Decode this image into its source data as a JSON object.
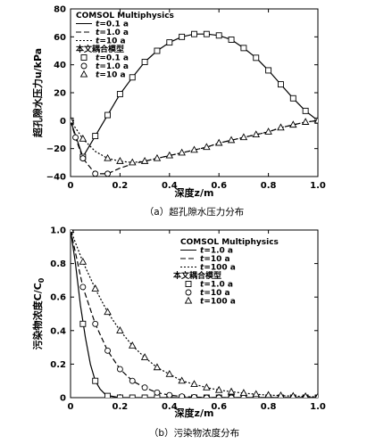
{
  "chart_data": [
    {
      "type": "line",
      "caption": "（a）超孔隙水压力分布",
      "xlabel": "深度z/m",
      "ylabel": "超孔隙水压力u/kPa",
      "xlim": [
        0,
        1
      ],
      "ylim": [
        -40,
        80
      ],
      "xticks": [
        "0",
        "0.2",
        "0.4",
        "0.6",
        "0.8",
        "1.0"
      ],
      "yticks": [
        "−40",
        "−20",
        "0",
        "20",
        "40",
        "60",
        "80"
      ],
      "legend_placement": "top-left",
      "legend_group1_title": "COMSOL Multiphysics",
      "legend_group2_title": "本文耦合模型",
      "series": [
        {
          "name": "t=0.1 a",
          "source": "COMSOL Multiphysics",
          "style": "solid",
          "x": [
            0,
            0.05,
            0.1,
            0.15,
            0.2,
            0.25,
            0.3,
            0.35,
            0.4,
            0.45,
            0.5,
            0.55,
            0.6,
            0.65,
            0.7,
            0.75,
            0.8,
            0.85,
            0.9,
            0.95,
            1.0
          ],
          "y": [
            0,
            -26,
            -11,
            4,
            19,
            31,
            42,
            50,
            56,
            60,
            62,
            62,
            61,
            58,
            52,
            45,
            36,
            26,
            16,
            7,
            0
          ]
        },
        {
          "name": "t=1.0 a",
          "source": "COMSOL Multiphysics",
          "style": "dashed",
          "x": [
            0,
            0.02,
            0.05,
            0.1,
            0.15,
            0.2,
            0.25,
            0.3,
            0.35,
            0.4,
            0.45,
            0.5,
            0.55,
            0.6,
            0.65,
            0.7,
            0.75,
            0.8,
            0.85,
            0.9,
            0.95,
            1.0
          ],
          "y": [
            0,
            -12,
            -27,
            -38,
            -38,
            -34,
            -31,
            -29,
            -27,
            -25,
            -23,
            -21,
            -19,
            -16,
            -14,
            -12,
            -10,
            -8,
            -5,
            -3,
            -1,
            0
          ]
        },
        {
          "name": "t=10 a",
          "source": "COMSOL Multiphysics",
          "style": "dotted",
          "x": [
            0,
            0.05,
            0.1,
            0.15,
            0.2,
            0.25,
            0.3,
            0.35,
            0.4,
            0.45,
            0.5,
            0.55,
            0.6,
            0.65,
            0.7,
            0.75,
            0.8,
            0.85,
            0.9,
            0.95,
            1.0
          ],
          "y": [
            0,
            -13,
            -22,
            -27,
            -29,
            -30,
            -29,
            -27,
            -25,
            -23,
            -21,
            -19,
            -16,
            -14,
            -12,
            -10,
            -8,
            -5,
            -3,
            -1,
            0
          ]
        },
        {
          "name": "t=0.1 a",
          "source": "本文耦合模型",
          "marker": "square",
          "x": [
            0,
            0.05,
            0.1,
            0.15,
            0.2,
            0.25,
            0.3,
            0.35,
            0.4,
            0.45,
            0.5,
            0.55,
            0.6,
            0.65,
            0.7,
            0.75,
            0.8,
            0.85,
            0.9,
            0.95,
            1.0
          ],
          "y": [
            0,
            -26,
            -11,
            4,
            19,
            31,
            42,
            50,
            56,
            60,
            62,
            62,
            61,
            58,
            52,
            45,
            36,
            26,
            16,
            7,
            0
          ]
        },
        {
          "name": "t=1.0 a",
          "source": "本文耦合模型",
          "marker": "circle",
          "x": [
            0.02,
            0.05,
            0.1,
            0.15
          ],
          "y": [
            -12,
            -27,
            -38,
            -38
          ]
        },
        {
          "name": "t=10 a",
          "source": "本文耦合模型",
          "marker": "triangle",
          "x": [
            0,
            0.05,
            0.15,
            0.2,
            0.25,
            0.3,
            0.35,
            0.4,
            0.45,
            0.5,
            0.55,
            0.6,
            0.65,
            0.7,
            0.75,
            0.8,
            0.85,
            0.9,
            0.95,
            1.0
          ],
          "y": [
            0,
            -13,
            -27,
            -29,
            -30,
            -29,
            -27,
            -25,
            -23,
            -21,
            -19,
            -16,
            -14,
            -12,
            -10,
            -8,
            -5,
            -3,
            -1,
            0
          ]
        }
      ]
    },
    {
      "type": "line",
      "caption": "（b）污染物浓度分布",
      "xlabel": "深度z/m",
      "ylabel": "污染物浓度C/C",
      "ylabel_sub": "0",
      "xlim": [
        0,
        1
      ],
      "ylim": [
        0,
        1
      ],
      "xticks": [
        "0",
        "0.2",
        "0.4",
        "0.6",
        "0.8",
        "1.0"
      ],
      "yticks": [
        "0",
        "0.2",
        "0.4",
        "0.6",
        "0.8",
        "1.0"
      ],
      "legend_placement": "top-right",
      "legend_group1_title": "COMSOL Multiphysics",
      "legend_group2_title": "本文耦合模型",
      "series": [
        {
          "name": "t=1.0 a",
          "source": "COMSOL Multiphysics",
          "style": "solid",
          "x": [
            0,
            0.02,
            0.04,
            0.06,
            0.08,
            0.1,
            0.12,
            0.14,
            0.16,
            0.2,
            0.3,
            0.5,
            0.7,
            1.0
          ],
          "y": [
            1.0,
            0.8,
            0.55,
            0.36,
            0.2,
            0.1,
            0.05,
            0.02,
            0.01,
            0,
            0,
            0,
            0,
            0
          ]
        },
        {
          "name": "t=10 a",
          "source": "COMSOL Multiphysics",
          "style": "dashed",
          "x": [
            0,
            0.05,
            0.1,
            0.15,
            0.2,
            0.25,
            0.3,
            0.35,
            0.4,
            0.45,
            0.5,
            0.6,
            0.7,
            0.8,
            0.9,
            1.0
          ],
          "y": [
            1.0,
            0.66,
            0.44,
            0.28,
            0.17,
            0.1,
            0.06,
            0.03,
            0.015,
            0.007,
            0.003,
            0,
            0,
            0,
            0,
            0
          ]
        },
        {
          "name": "t=100 a",
          "source": "COMSOL Multiphysics",
          "style": "dotted",
          "x": [
            0,
            0.05,
            0.1,
            0.15,
            0.2,
            0.25,
            0.3,
            0.35,
            0.4,
            0.45,
            0.5,
            0.55,
            0.6,
            0.65,
            0.7,
            0.75,
            0.8,
            0.85,
            0.9,
            0.95,
            1.0
          ],
          "y": [
            1.0,
            0.81,
            0.65,
            0.51,
            0.4,
            0.31,
            0.24,
            0.18,
            0.14,
            0.1,
            0.08,
            0.06,
            0.045,
            0.035,
            0.027,
            0.02,
            0.015,
            0.012,
            0.009,
            0.007,
            0.005
          ]
        },
        {
          "name": "t=1.0 a",
          "source": "本文耦合模型",
          "marker": "square",
          "x": [
            0,
            0.05,
            0.1,
            0.15,
            0.2,
            0.25,
            0.3,
            0.35,
            0.4,
            0.45,
            0.5,
            0.55,
            0.6,
            0.65,
            0.7,
            0.75,
            0.8,
            0.85,
            0.9,
            0.95,
            1.0
          ],
          "y": [
            1.0,
            0.44,
            0.1,
            0.01,
            0,
            0,
            0,
            0,
            0,
            0,
            0,
            0,
            0,
            0,
            0,
            0,
            0,
            0,
            0,
            0,
            0
          ]
        },
        {
          "name": "t=10 a",
          "source": "本文耦合模型",
          "marker": "circle",
          "x": [
            0,
            0.05,
            0.1,
            0.15,
            0.2,
            0.25,
            0.3,
            0.35,
            0.4,
            0.45,
            0.5,
            0.55,
            0.6,
            0.65,
            0.7,
            0.75,
            0.8,
            0.85,
            0.9,
            0.95,
            1.0
          ],
          "y": [
            1.0,
            0.66,
            0.44,
            0.28,
            0.17,
            0.1,
            0.06,
            0.03,
            0.015,
            0.007,
            0.003,
            0,
            0,
            0,
            0,
            0,
            0,
            0,
            0,
            0,
            0
          ]
        },
        {
          "name": "t=100 a",
          "source": "本文耦合模型",
          "marker": "triangle",
          "x": [
            0,
            0.05,
            0.1,
            0.15,
            0.2,
            0.25,
            0.3,
            0.35,
            0.4,
            0.45,
            0.5,
            0.55,
            0.6,
            0.65,
            0.7,
            0.75,
            0.8,
            0.85,
            0.9,
            0.95,
            1.0
          ],
          "y": [
            1.0,
            0.81,
            0.65,
            0.51,
            0.4,
            0.31,
            0.24,
            0.18,
            0.14,
            0.1,
            0.08,
            0.06,
            0.045,
            0.035,
            0.027,
            0.02,
            0.015,
            0.012,
            0.009,
            0.007,
            0.005
          ]
        }
      ]
    }
  ]
}
